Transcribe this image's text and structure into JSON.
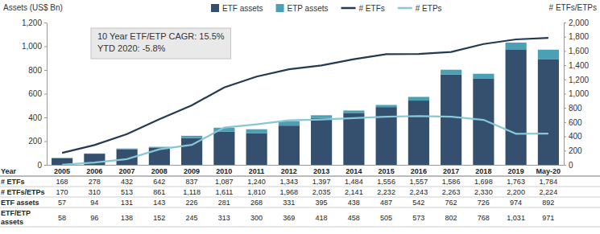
{
  "chart_data": {
    "type": "bar",
    "stacked": true,
    "grid": false,
    "legend": "top",
    "tick_labels": "y",
    "ylabel": "Assets (US$ Bn)",
    "y2label": "# ETFs/ETPs",
    "annotations": [
      "10 Year ETF/ETP CAGR: 15.5%",
      "YTD 2020: -5.8%"
    ],
    "categories": [
      "2005",
      "2006",
      "2007",
      "2008",
      "2009",
      "2010",
      "2011",
      "2012",
      "2013",
      "2014",
      "2015",
      "2016",
      "2017",
      "2018",
      "2019",
      "May-20"
    ],
    "ylim": [
      0,
      1200
    ],
    "yticks": [
      0,
      200,
      400,
      600,
      800,
      {
        "value": 1000,
        "label": "1,000"
      },
      {
        "value": 1200,
        "label": "1,200"
      }
    ],
    "y2lim": [
      0,
      2000
    ],
    "y2ticks": [
      0,
      200,
      400,
      600,
      800,
      {
        "value": 1000,
        "label": "1,000"
      },
      {
        "value": 1200,
        "label": "1,200"
      },
      {
        "value": 1400,
        "label": "1,400"
      },
      {
        "value": 1600,
        "label": "1,600"
      },
      {
        "value": 1800,
        "label": "1,800"
      },
      {
        "value": 2000,
        "label": "2,000"
      }
    ],
    "series": [
      {
        "name": "ETF assets",
        "type": "bar",
        "color": "#34506e",
        "values": [
          57,
          94,
          131,
          143,
          226,
          281,
          268,
          331,
          395,
          438,
          487,
          542,
          762,
          726,
          974,
          892
        ]
      },
      {
        "name": "ETP assets",
        "type": "bar",
        "color": "#4aa0b4",
        "values": [
          1,
          2,
          7,
          9,
          19,
          32,
          32,
          38,
          23,
          20,
          18,
          31,
          40,
          42,
          57,
          79
        ]
      },
      {
        "name": "# ETFs",
        "type": "line",
        "axis": "y2",
        "color": "#243a53",
        "values": [
          168,
          278,
          432,
          642,
          837,
          1087,
          1240,
          1343,
          1397,
          1484,
          1556,
          1557,
          1586,
          1698,
          1763,
          1784
        ]
      },
      {
        "name": "# ETPs",
        "type": "line",
        "axis": "y2",
        "color": "#86c7d8",
        "values": [
          2,
          32,
          81,
          219,
          281,
          524,
          570,
          625,
          638,
          657,
          676,
          686,
          677,
          632,
          437,
          440
        ]
      }
    ],
    "table": {
      "header": "Year",
      "rows": [
        {
          "label": "# ETFs",
          "values": [
            "168",
            "278",
            "432",
            "642",
            "837",
            "1,087",
            "1,240",
            "1,343",
            "1,397",
            "1,484",
            "1,556",
            "1,557",
            "1,586",
            "1,698",
            "1,763",
            "1,784"
          ]
        },
        {
          "label": "# ETFs/ETPs",
          "values": [
            "170",
            "310",
            "513",
            "861",
            "1,118",
            "1,611",
            "1,810",
            "1,968",
            "2,035",
            "2,141",
            "2,232",
            "2,243",
            "2,263",
            "2,330",
            "2,200",
            "2,224"
          ]
        },
        {
          "label": "ETF assets",
          "values": [
            "57",
            "94",
            "131",
            "143",
            "226",
            "281",
            "268",
            "331",
            "395",
            "438",
            "487",
            "542",
            "762",
            "726",
            "974",
            "892"
          ]
        },
        {
          "label": "ETF/ETP assets",
          "values": [
            "58",
            "96",
            "138",
            "152",
            "245",
            "313",
            "300",
            "369",
            "418",
            "458",
            "505",
            "573",
            "802",
            "768",
            "1,031",
            "971"
          ]
        }
      ]
    }
  }
}
